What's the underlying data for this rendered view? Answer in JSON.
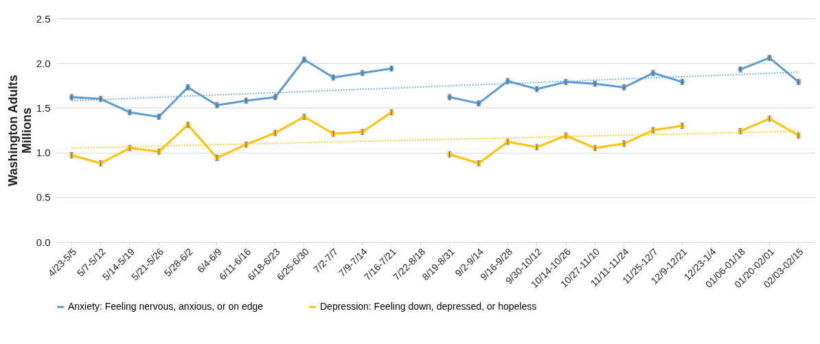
{
  "chart_data": {
    "type": "line",
    "ylabel": "Washington Adults\nMillions",
    "categories": [
      "4/23-5/5",
      "5/7-5/12",
      "5/14-5/19",
      "5/21-5/26",
      "5/28-6/2",
      "6/4-6/9",
      "6/11-6/16",
      "6/18-6/23",
      "6/25-6/30",
      "7/2-7/7",
      "7/9-7/14",
      "7/16-7/21",
      "7/22-8/18",
      "8/19-8/31",
      "9/2-9/14",
      "9/16-9/28",
      "9/30-10/12",
      "10/14-10/26",
      "10/27-11/10",
      "11/11-11/24",
      "11/25-12/7",
      "12/9-12/21",
      "12/23-1/4",
      "01/06-01/18",
      "01/20-02/01",
      "02/03-02/15"
    ],
    "series": [
      {
        "name": "Anxiety: Feeling nervous, anxious, or on edge",
        "color": "#5b9bd5",
        "marker": "circle",
        "values": [
          1.62,
          1.6,
          1.45,
          1.4,
          1.73,
          1.53,
          1.58,
          1.62,
          2.04,
          1.84,
          1.89,
          1.94,
          null,
          1.62,
          1.55,
          1.8,
          1.71,
          1.79,
          1.77,
          1.73,
          1.89,
          1.79,
          null,
          1.93,
          2.06,
          1.79
        ],
        "errors": [
          0.03,
          0.03,
          0.03,
          0.03,
          0.03,
          0.03,
          0.03,
          0.03,
          0.03,
          0.03,
          0.03,
          0.03,
          null,
          0.03,
          0.03,
          0.03,
          0.03,
          0.03,
          0.03,
          0.03,
          0.03,
          0.03,
          null,
          0.03,
          0.03,
          0.03
        ]
      },
      {
        "name": "Depression: Feeling down, depressed, or hopeless",
        "color": "#ffc000",
        "marker": "circle",
        "values": [
          0.97,
          0.88,
          1.05,
          1.01,
          1.31,
          0.94,
          1.09,
          1.22,
          1.4,
          1.21,
          1.23,
          1.45,
          null,
          0.98,
          0.88,
          1.12,
          1.06,
          1.19,
          1.05,
          1.1,
          1.25,
          1.3,
          null,
          1.24,
          1.38,
          1.19
        ],
        "errors": [
          0.03,
          0.03,
          0.03,
          0.03,
          0.03,
          0.03,
          0.03,
          0.03,
          0.03,
          0.03,
          0.03,
          0.03,
          null,
          0.03,
          0.03,
          0.03,
          0.03,
          0.03,
          0.03,
          0.03,
          0.03,
          0.03,
          null,
          0.03,
          0.03,
          0.03
        ]
      },
      {
        "type": "line",
        "color": "#5b9bd5",
        "line_style": "dotted",
        "marker": "none",
        "x": [
          "4/23-5/5",
          "02/03-02/15"
        ],
        "values": [
          1.58,
          1.9
        ]
      },
      {
        "type": "line",
        "color": "#ffc000",
        "line_style": "dotted",
        "marker": "none",
        "x": [
          "4/23-5/5",
          "02/03-02/15"
        ],
        "values": [
          1.05,
          1.24
        ]
      }
    ],
    "ylim": [
      0,
      2.5
    ],
    "yticks": [
      {
        "value": 0,
        "label": "0.0"
      },
      0.5,
      {
        "value": 1,
        "label": "1.0"
      },
      1.5,
      {
        "value": 2,
        "label": "2.0"
      },
      2.5
    ],
    "grid": "y",
    "legend": "bottom"
  }
}
